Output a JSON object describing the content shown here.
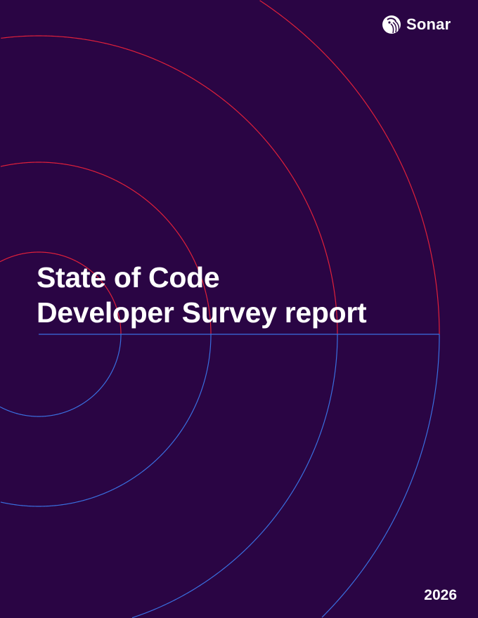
{
  "brand": {
    "name": "Sonar",
    "icon": "sonar-logo-icon"
  },
  "title": {
    "line1": "State of Code",
    "line2": "Developer Survey report"
  },
  "year": "2026",
  "colors": {
    "background": "#2a0544",
    "arc_top": "#e0203a",
    "arc_bottom": "#3a6fe0",
    "text": "#ffffff"
  }
}
